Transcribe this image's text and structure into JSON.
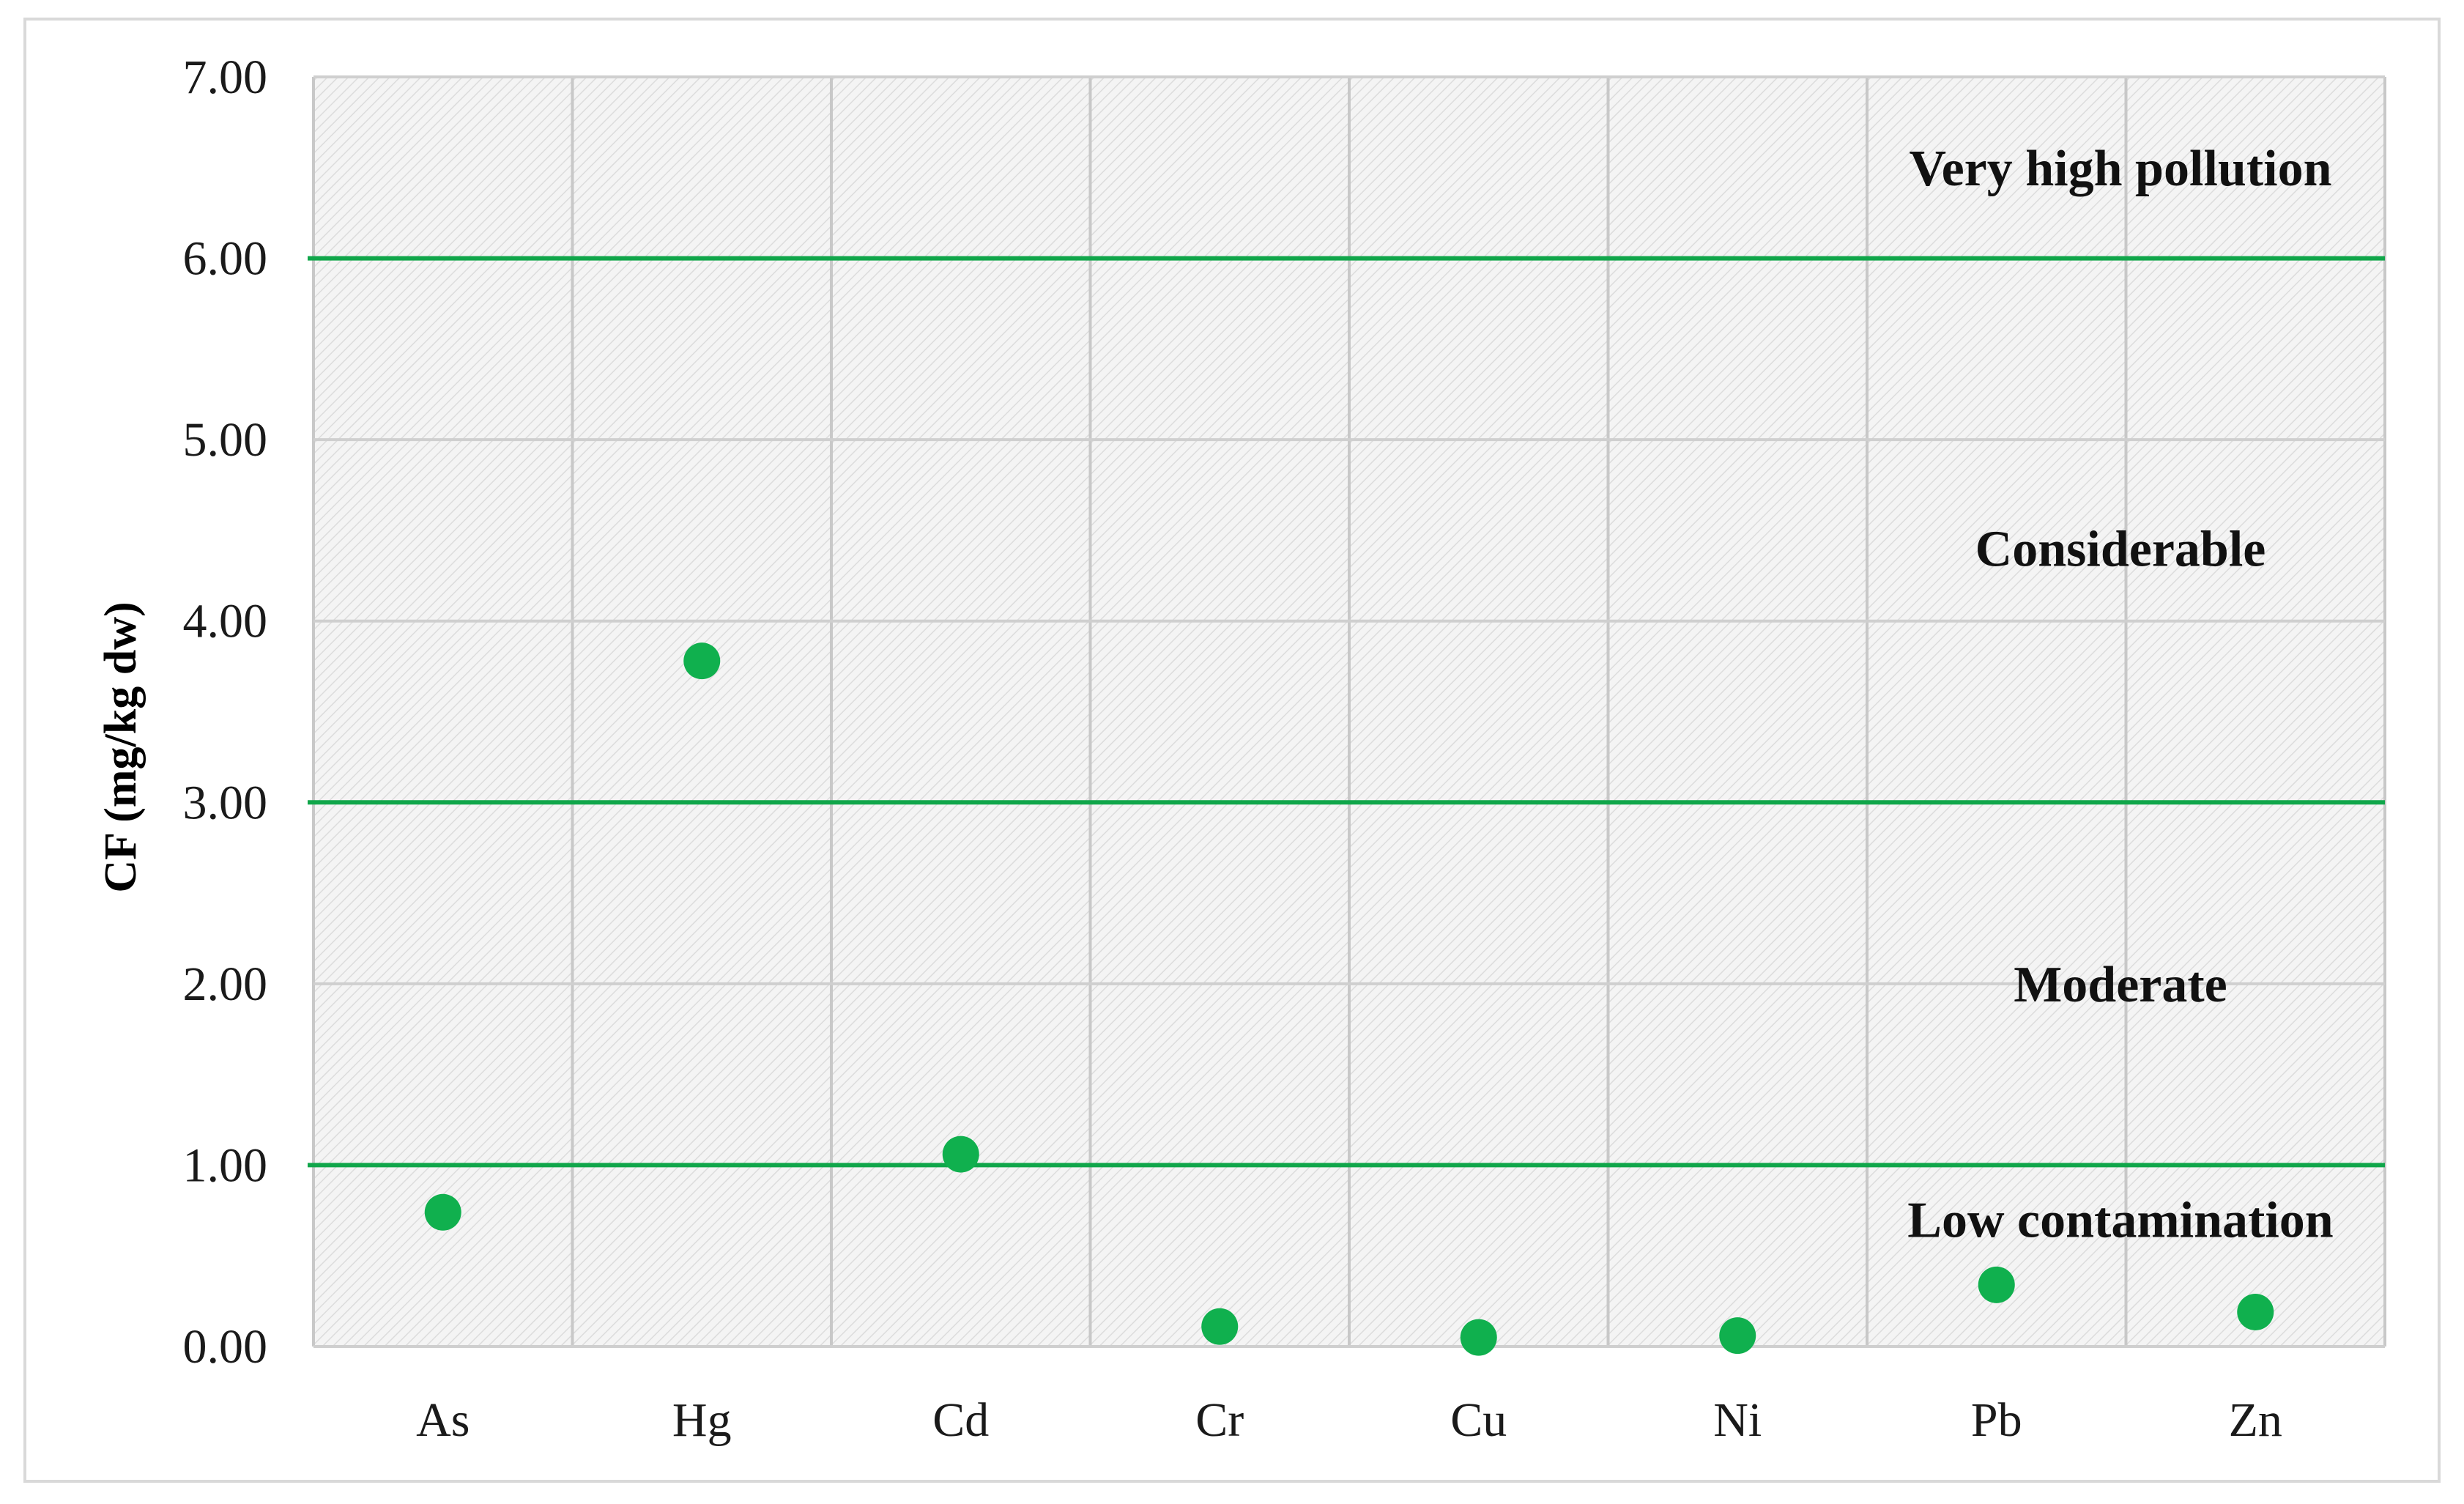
{
  "chart_data": {
    "type": "scatter",
    "categories": [
      "As",
      "Hg",
      "Cd",
      "Cr",
      "Cu",
      "Ni",
      "Pb",
      "Zn"
    ],
    "values": [
      0.74,
      3.78,
      1.06,
      0.11,
      0.05,
      0.06,
      0.34,
      0.19
    ],
    "ylabel": "CF (mg/kg dw)",
    "xlabel": "",
    "ylim": [
      0,
      7
    ],
    "yticks": [
      "0.00",
      "1.00",
      "2.00",
      "3.00",
      "4.00",
      "5.00",
      "6.00",
      "7.00"
    ],
    "threshold_lines": [
      1.0,
      3.0,
      6.0
    ],
    "zones": [
      {
        "label": "Very high pollution",
        "y": 6.5
      },
      {
        "label": "Considerable",
        "y": 4.4
      },
      {
        "label": "Moderate",
        "y": 2.0
      },
      {
        "label": "Low contamination",
        "y": 0.7
      }
    ],
    "grid": true,
    "legend": "none",
    "marker_color": "#10b04e",
    "line_color": "#10a64a"
  }
}
